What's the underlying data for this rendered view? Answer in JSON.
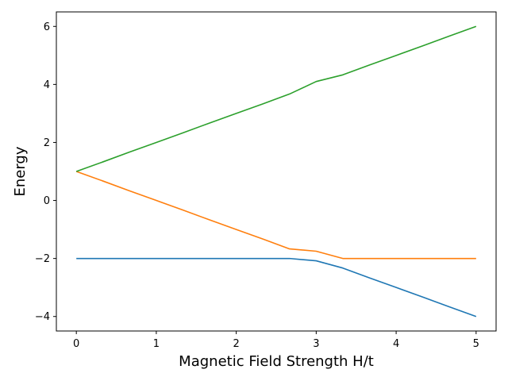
{
  "chart_data": {
    "type": "line",
    "title": "",
    "xlabel": "Magnetic Field Strength H/t",
    "ylabel": "Energy",
    "xlim": [
      -0.25,
      5.25
    ],
    "ylim": [
      -4.5,
      6.5
    ],
    "xticks": [
      0,
      1,
      2,
      3,
      4,
      5
    ],
    "xtick_labels": [
      "0",
      "1",
      "2",
      "3",
      "4",
      "5"
    ],
    "yticks": [
      -4,
      -2,
      0,
      2,
      4,
      6
    ],
    "ytick_labels": [
      "−4",
      "−2",
      "0",
      "2",
      "4",
      "6"
    ],
    "grid": false,
    "legend": "none",
    "series": [
      {
        "color": "#1f77b4",
        "x": [
          0,
          0.333,
          0.667,
          1,
          1.333,
          1.667,
          2,
          2.333,
          2.667,
          3,
          3.333,
          3.667,
          4,
          4.333,
          4.667,
          5
        ],
        "y": [
          -2,
          -2,
          -2,
          -2,
          -2,
          -2,
          -2,
          -2,
          -2,
          -2.08,
          -2.33,
          -2.67,
          -3,
          -3.33,
          -3.67,
          -4
        ]
      },
      {
        "color": "#ff7f0e",
        "x": [
          0,
          0.333,
          0.667,
          1,
          1.333,
          1.667,
          2,
          2.333,
          2.667,
          3,
          3.333,
          3.667,
          4,
          4.333,
          4.667,
          5
        ],
        "y": [
          1,
          0.67,
          0.33,
          0,
          -0.33,
          -0.67,
          -1,
          -1.33,
          -1.67,
          -1.75,
          -2,
          -2,
          -2,
          -2,
          -2,
          -2
        ]
      },
      {
        "color": "#2ca02c",
        "x": [
          0,
          0.333,
          0.667,
          1,
          1.333,
          1.667,
          2,
          2.333,
          2.667,
          3,
          3.333,
          3.667,
          4,
          4.333,
          4.667,
          5
        ],
        "y": [
          1,
          1.33,
          1.67,
          2,
          2.33,
          2.67,
          3,
          3.33,
          3.67,
          4.1,
          4.33,
          4.67,
          5,
          5.33,
          5.67,
          6
        ]
      }
    ]
  }
}
